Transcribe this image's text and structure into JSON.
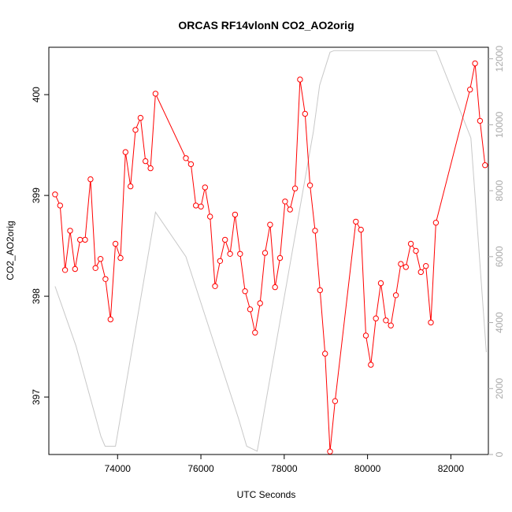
{
  "chart_data": {
    "type": "line",
    "title": "ORCAS RF14vlonN CO2_AO2orig",
    "xlabel": "UTC Seconds",
    "ylabel": "CO2_AO2orig",
    "xlim": [
      72350,
      82900
    ],
    "ylim": [
      396.43,
      400.47
    ],
    "y2lim": [
      0,
      12350
    ],
    "x_ticks": [
      74000,
      76000,
      78000,
      80000,
      82000
    ],
    "y_ticks": [
      397,
      398,
      399,
      400
    ],
    "y2_ticks": [
      0,
      2000,
      4000,
      6000,
      8000,
      10000,
      12000
    ],
    "grid": false,
    "legend": "none",
    "series": [
      {
        "color": "#ff0000",
        "axis": "left",
        "style": "line+points",
        "x": [
          72500,
          72620,
          72740,
          72860,
          72980,
          73100,
          73220,
          73350,
          73470,
          73590,
          73710,
          73830,
          73950,
          74070,
          74190,
          74310,
          74430,
          74550,
          74670,
          74790,
          74910,
          75640,
          75760,
          75880,
          76000,
          76100,
          76220,
          76340,
          76460,
          76580,
          76700,
          76820,
          76940,
          77060,
          77180,
          77300,
          77420,
          77540,
          77660,
          77780,
          77900,
          78020,
          78140,
          78260,
          78380,
          78500,
          78620,
          78740,
          78860,
          78980,
          79100,
          79220,
          79720,
          79840,
          79960,
          80080,
          80200,
          80320,
          80440,
          80560,
          80680,
          80800,
          80920,
          81040,
          81160,
          81280,
          81400,
          81520,
          81640,
          82460,
          82580,
          82700,
          82820
        ],
        "y": [
          399.01,
          398.9,
          398.26,
          398.65,
          398.27,
          398.56,
          398.56,
          399.16,
          398.28,
          398.37,
          398.17,
          397.77,
          398.52,
          398.38,
          399.43,
          399.09,
          399.65,
          399.77,
          399.34,
          399.27,
          400.01,
          399.37,
          399.31,
          398.9,
          398.89,
          399.08,
          398.79,
          398.1,
          398.35,
          398.56,
          398.42,
          398.81,
          398.42,
          398.05,
          397.87,
          397.64,
          397.93,
          398.43,
          398.71,
          398.09,
          398.38,
          398.94,
          398.86,
          399.07,
          400.15,
          399.81,
          399.1,
          398.65,
          398.06,
          397.43,
          396.46,
          396.96,
          398.74,
          398.66,
          397.61,
          397.32,
          397.78,
          398.13,
          397.76,
          397.71,
          398.01,
          398.32,
          398.29,
          398.52,
          398.45,
          398.24,
          398.3,
          397.74,
          398.73,
          400.05,
          400.31,
          399.74,
          399.3
        ]
      },
      {
        "color": "#c8c8c8",
        "axis": "right",
        "style": "line",
        "x": [
          72500,
          73000,
          73600,
          73700,
          73950,
          74910,
          75640,
          76900,
          77100,
          77350,
          78700,
          78850,
          79100,
          79200,
          81650,
          82480,
          82850
        ],
        "y": [
          5100,
          3300,
          550,
          250,
          250,
          7350,
          6000,
          1100,
          250,
          100,
          9800,
          11200,
          12200,
          12250,
          12250,
          9600,
          3100
        ]
      }
    ]
  }
}
